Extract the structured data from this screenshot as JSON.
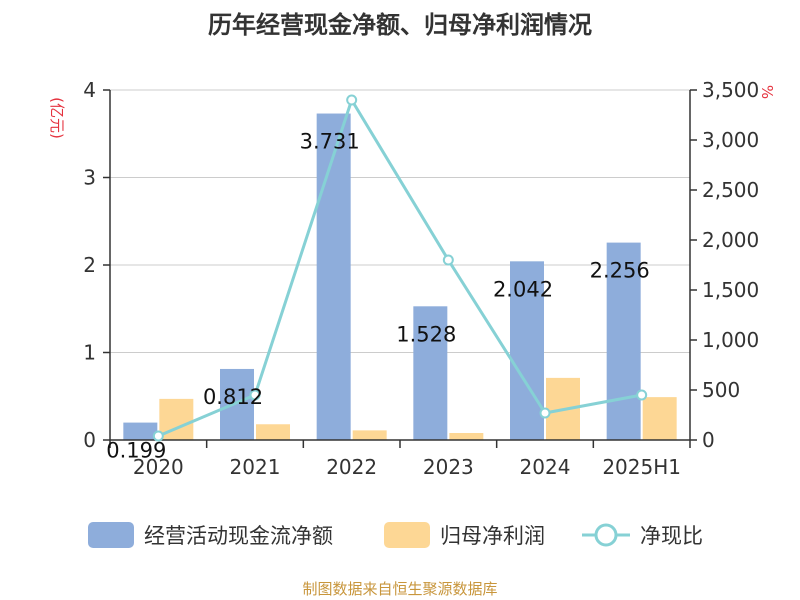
{
  "title": "历年经营现金净额、归母净利润情况",
  "source": "制图数据来自恒生聚源数据库",
  "colors": {
    "bar_ocf": "#8eaddb",
    "bar_np": "#fdd795",
    "line": "#86d1d5",
    "unit_text": "#e5323e",
    "source_text": "#c8963c"
  },
  "chart_data": {
    "type": "bar",
    "title": "历年经营现金净额、归母净利润情况",
    "categories": [
      "2020",
      "2021",
      "2022",
      "2023",
      "2024",
      "2025H1"
    ],
    "y_left": {
      "label": "(亿元)",
      "ylim": [
        0,
        4
      ],
      "ticks": [
        "0",
        "1",
        "2",
        "3",
        "4"
      ]
    },
    "y_right": {
      "label": "%",
      "ylim": [
        0,
        3500
      ],
      "ticks": [
        "0",
        "500",
        "1,000",
        "1,500",
        "2,000",
        "2,500",
        "3,000",
        "3,500"
      ]
    },
    "series": [
      {
        "name": "经营活动现金流净额",
        "kind": "bar",
        "axis": "left",
        "values": [
          0.199,
          0.812,
          3.731,
          1.528,
          2.042,
          2.256
        ],
        "labels": [
          "0.199",
          "0.812",
          "3.731",
          "1.528",
          "2.042",
          "2.256"
        ]
      },
      {
        "name": "归母净利润",
        "kind": "bar",
        "axis": "left",
        "values": [
          0.47,
          0.18,
          0.11,
          0.08,
          0.71,
          0.49
        ]
      },
      {
        "name": "净现比",
        "kind": "line",
        "axis": "right",
        "values": [
          40,
          450,
          3400,
          1800,
          270,
          450
        ]
      }
    ],
    "grid": true,
    "legend_position": "bottom"
  }
}
